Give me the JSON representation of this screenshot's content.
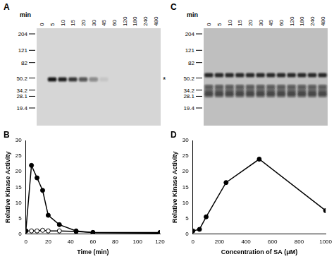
{
  "gels": [
    {
      "panel_label": "A",
      "lane_header": "min",
      "lanes": [
        0,
        5,
        10,
        15,
        20,
        30,
        45,
        60,
        120,
        180,
        240,
        480
      ],
      "size_markers": [
        204,
        121,
        82,
        50.2,
        34.2,
        28.1,
        19.4
      ],
      "bands": [
        {
          "kda": 48,
          "label": "*",
          "intensity": [
            0,
            0.95,
            0.9,
            0.8,
            0.65,
            0.4,
            0.08,
            0,
            0,
            0,
            0,
            0
          ]
        }
      ]
    },
    {
      "panel_label": "C",
      "lane_header": "min",
      "lanes": [
        0,
        5,
        10,
        15,
        20,
        30,
        45,
        60,
        120,
        180,
        240,
        480
      ],
      "size_markers": [
        204,
        121,
        82,
        50.2,
        34.2,
        28.1,
        19.4
      ],
      "bands": [
        {
          "kda": 55,
          "intensity": [
            0.85,
            0.85,
            0.85,
            0.85,
            0.85,
            0.85,
            0.85,
            0.85,
            0.85,
            0.85,
            0.85,
            0.85
          ]
        },
        {
          "kda": 38,
          "intensity": [
            0.55,
            0.55,
            0.55,
            0.55,
            0.55,
            0.55,
            0.55,
            0.55,
            0.55,
            0.55,
            0.55,
            0.55
          ]
        },
        {
          "kda": 34,
          "intensity": [
            0.45,
            0.45,
            0.45,
            0.45,
            0.45,
            0.45,
            0.45,
            0.45,
            0.45,
            0.45,
            0.45,
            0.45
          ]
        },
        {
          "kda": 31,
          "intensity": [
            0.55,
            0.55,
            0.55,
            0.55,
            0.55,
            0.55,
            0.55,
            0.55,
            0.55,
            0.55,
            0.55,
            0.55
          ]
        },
        {
          "kda": 29,
          "intensity": [
            0.5,
            0.5,
            0.5,
            0.5,
            0.5,
            0.5,
            0.5,
            0.5,
            0.5,
            0.5,
            0.5,
            0.5
          ]
        }
      ]
    }
  ],
  "chart_data": [
    {
      "type": "line",
      "panel_label": "B",
      "x_label": "Time (min)",
      "y_label": "Relative Kinase Activity",
      "x": [
        0,
        5,
        10,
        15,
        20,
        30,
        45,
        60,
        120
      ],
      "series": [
        {
          "color": "#000000",
          "marker": "circle",
          "values": [
            1,
            22,
            18,
            14,
            6,
            3,
            1,
            0.5,
            0.5
          ]
        },
        {
          "color": "#000000",
          "marker": "circle_open",
          "values": [
            1,
            1,
            1,
            1.2,
            1,
            1,
            0.8,
            0.5,
            0.3
          ]
        }
      ],
      "xlim": [
        0,
        120
      ],
      "xticks": [
        0,
        20,
        40,
        60,
        80,
        100,
        120
      ],
      "ylim": [
        0,
        30
      ],
      "yticks": [
        0,
        5,
        10,
        15,
        20,
        25,
        30
      ],
      "grid": false
    },
    {
      "type": "line",
      "panel_label": "D",
      "x_label": "Concentration of SA (μM)",
      "y_label": "Relative Kinase Activity",
      "x": [
        0,
        50,
        100,
        250,
        500,
        1000
      ],
      "series": [
        {
          "color": "#000000",
          "marker": "circle",
          "values": [
            1,
            1.5,
            5.5,
            16.5,
            24,
            7.5
          ]
        }
      ],
      "xlim": [
        0,
        1000
      ],
      "xticks": [
        0,
        200,
        400,
        600,
        800,
        1000
      ],
      "ylim": [
        0,
        30
      ],
      "yticks": [
        0,
        5,
        10,
        15,
        20,
        25,
        30
      ],
      "grid": false
    }
  ]
}
